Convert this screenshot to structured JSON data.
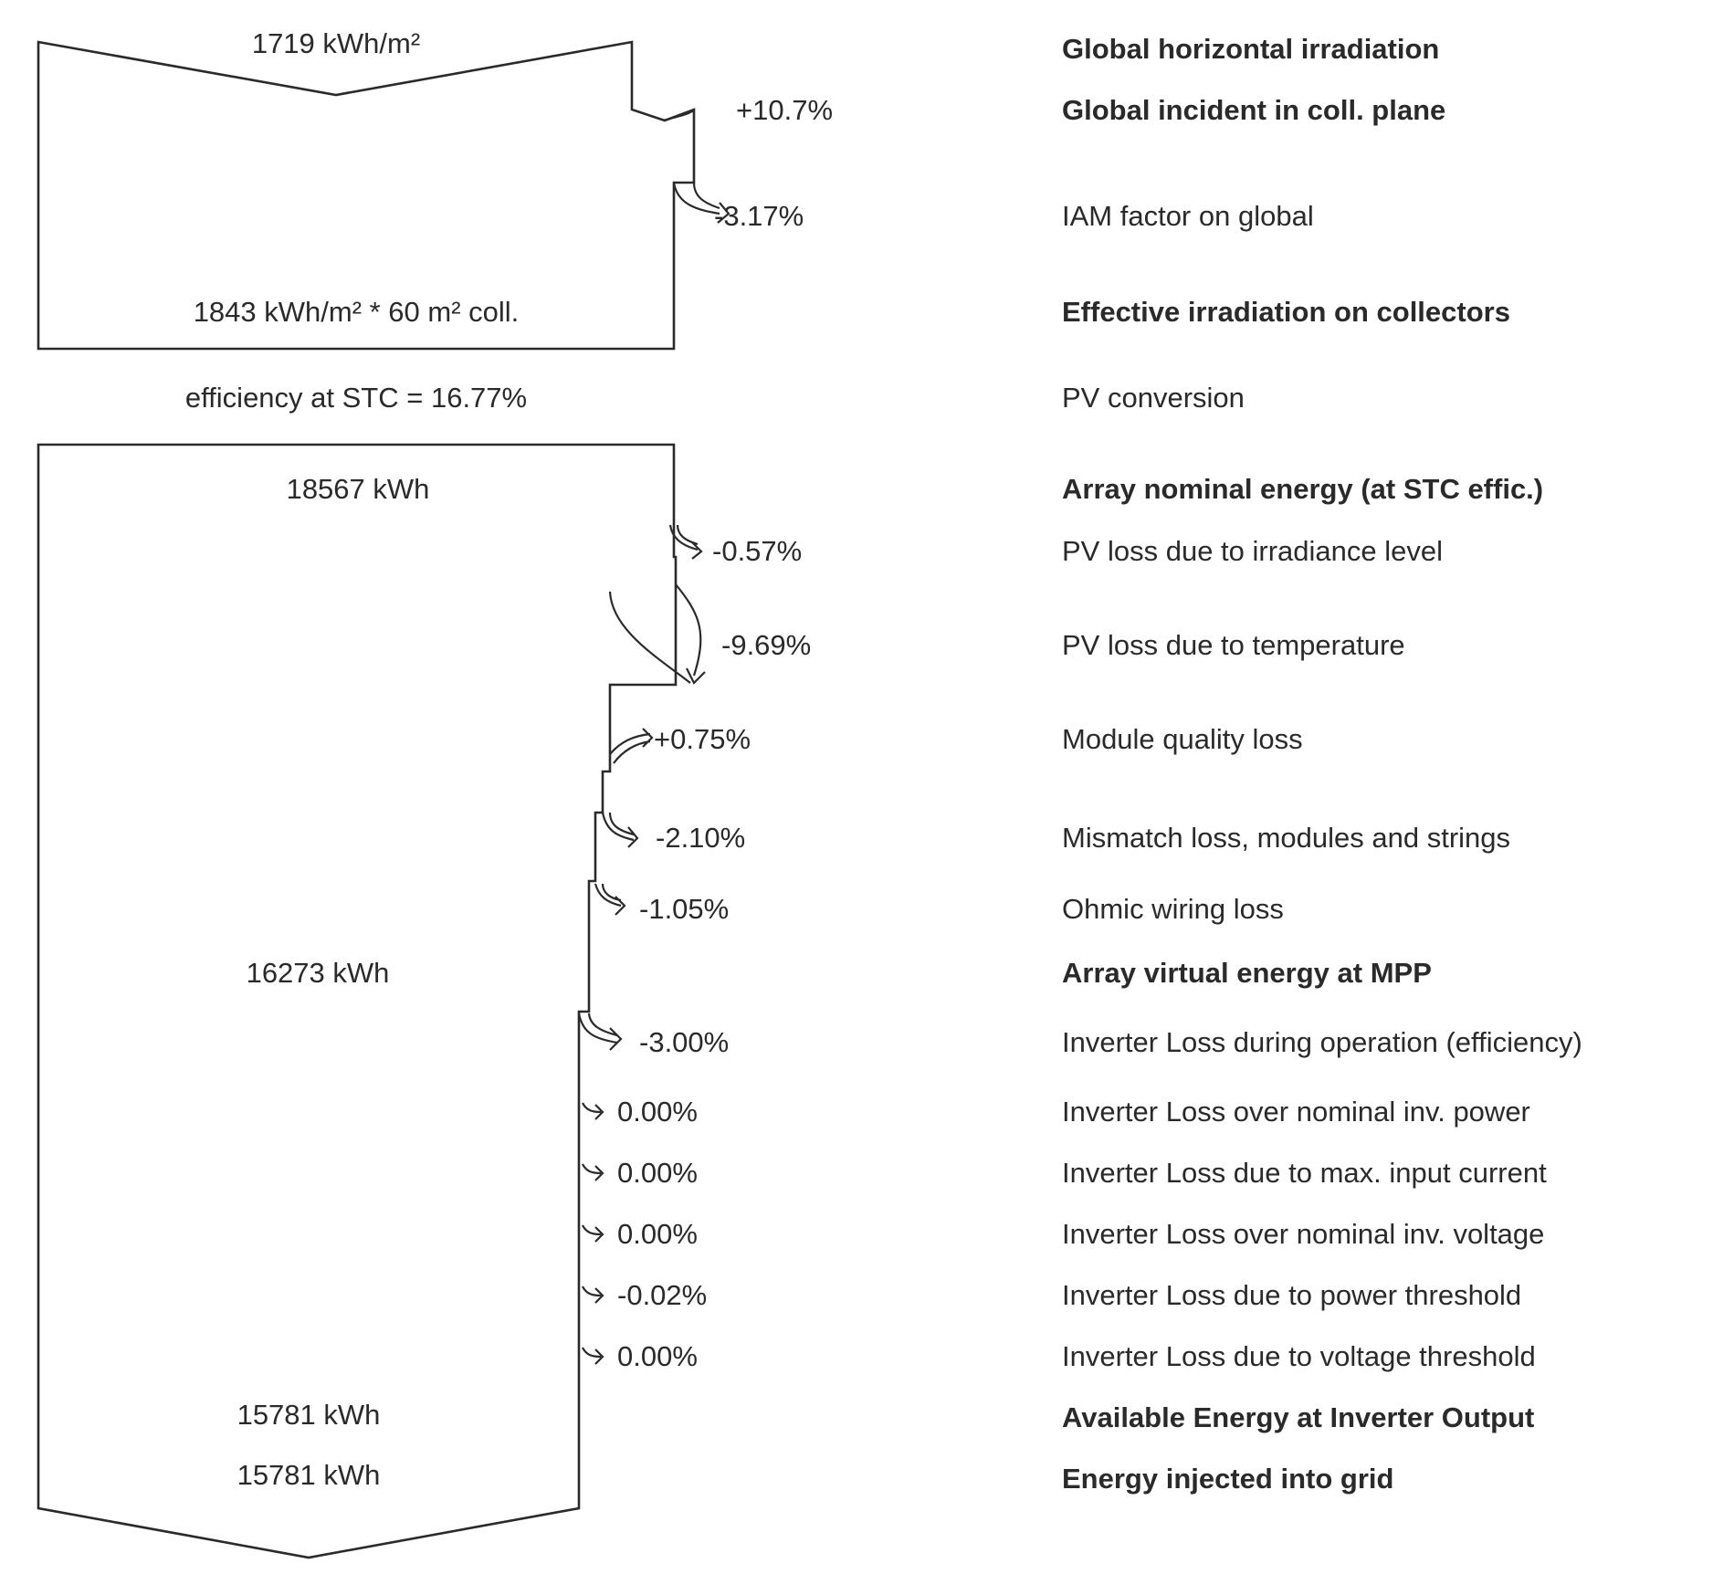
{
  "diagram": {
    "top_block": {
      "input_value": "1719 kWh/m²",
      "effective_value": "1843 kWh/m² * 60 m² coll."
    },
    "efficiency_text": "efficiency at STC = 16.77%",
    "bottom_block": {
      "nominal_energy": "18567 kWh",
      "virtual_energy": "16273 kWh",
      "available_energy": "15781 kWh",
      "injected_energy": "15781 kWh"
    },
    "steps": [
      {
        "label": "Global horizontal irradiation",
        "percent": "",
        "bold": true
      },
      {
        "label": "Global incident in coll. plane",
        "percent": "+10.7%",
        "bold": true
      },
      {
        "label": "IAM factor on global",
        "percent": "-3.17%",
        "bold": false
      },
      {
        "label": "Effective irradiation on collectors",
        "percent": "",
        "bold": true
      },
      {
        "label": "PV conversion",
        "percent": "",
        "bold": false
      },
      {
        "label": "Array nominal energy (at STC effic.)",
        "percent": "",
        "bold": true
      },
      {
        "label": "PV loss due to irradiance level",
        "percent": "-0.57%",
        "bold": false
      },
      {
        "label": "PV loss due to temperature",
        "percent": "-9.69%",
        "bold": false
      },
      {
        "label": "Module quality loss",
        "percent": "+0.75%",
        "bold": false
      },
      {
        "label": "Mismatch loss, modules and strings",
        "percent": "-2.10%",
        "bold": false
      },
      {
        "label": "Ohmic wiring loss",
        "percent": "-1.05%",
        "bold": false
      },
      {
        "label": "Array virtual energy at MPP",
        "percent": "",
        "bold": true
      },
      {
        "label": "Inverter Loss during operation (efficiency)",
        "percent": "-3.00%",
        "bold": false
      },
      {
        "label": "Inverter Loss over nominal inv. power",
        "percent": "0.00%",
        "bold": false
      },
      {
        "label": "Inverter Loss due to max. input current",
        "percent": "0.00%",
        "bold": false
      },
      {
        "label": "Inverter Loss over nominal inv. voltage",
        "percent": "0.00%",
        "bold": false
      },
      {
        "label": "Inverter Loss due to power threshold",
        "percent": "-0.02%",
        "bold": false
      },
      {
        "label": "Inverter Loss due to voltage threshold",
        "percent": "0.00%",
        "bold": false
      },
      {
        "label": "Available Energy at Inverter Output",
        "percent": "",
        "bold": true
      },
      {
        "label": "Energy injected into grid",
        "percent": "",
        "bold": true
      }
    ]
  }
}
